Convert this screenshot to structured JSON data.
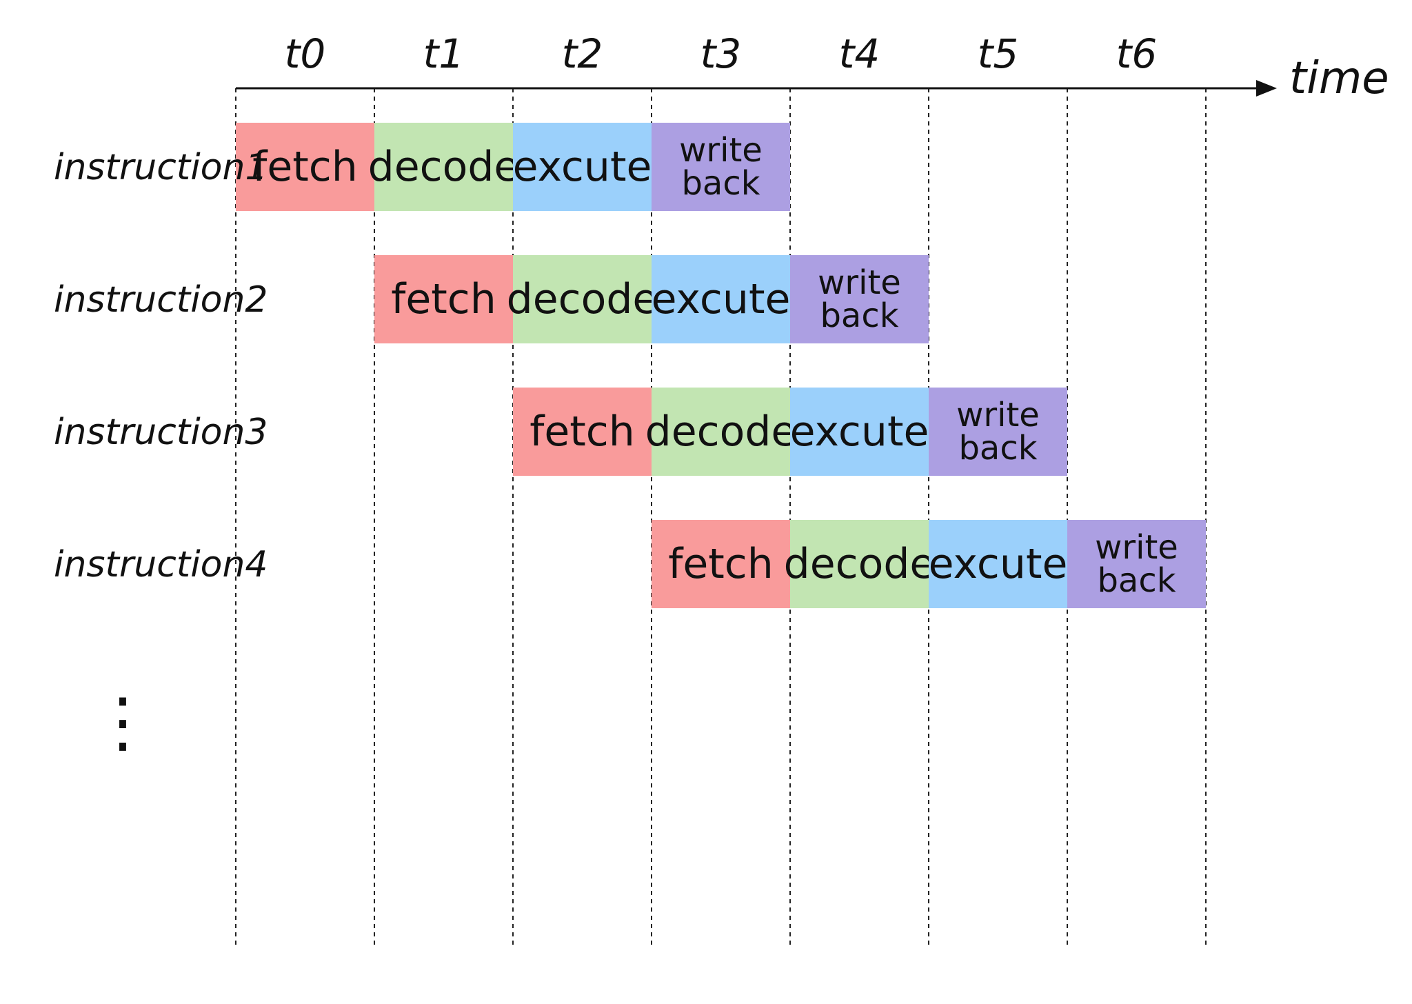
{
  "axis": {
    "label": "time"
  },
  "time_steps": [
    "t0",
    "t1",
    "t2",
    "t3",
    "t4",
    "t5",
    "t6"
  ],
  "stages": [
    {
      "key": "fetch",
      "label": "fetch",
      "color": "#f99b9b"
    },
    {
      "key": "decode",
      "label": "decode",
      "color": "#c2e5b2"
    },
    {
      "key": "execute",
      "label": "excute",
      "color": "#9bd0fb"
    },
    {
      "key": "writeback",
      "label": "write back",
      "lines": [
        "write",
        "back"
      ],
      "color": "#ac9fe2"
    }
  ],
  "instructions": [
    {
      "label": "instruction1",
      "start": 0
    },
    {
      "label": "instruction2",
      "start": 1
    },
    {
      "label": "instruction3",
      "start": 2
    },
    {
      "label": "instruction4",
      "start": 3
    }
  ],
  "ellipsis": "⋮"
}
